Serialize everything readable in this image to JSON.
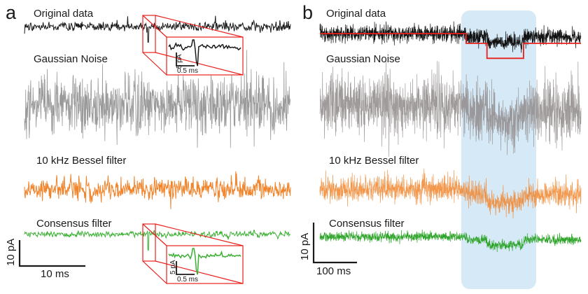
{
  "chart_data": {
    "type": "line",
    "title": "",
    "panels": [
      {
        "panel_label": "a",
        "traces": [
          {
            "name": "Original data",
            "color": "#1a1a1a",
            "noise_amplitude_pA": 2.5,
            "event": {
              "type": "spike",
              "depth_pA": 7
            }
          },
          {
            "name": "Gaussian Noise",
            "color": "#8f8f8f",
            "noise_amplitude_pA": 14
          },
          {
            "name": "10 kHz Bessel filter",
            "color": "#f0852d",
            "noise_amplitude_pA": 7
          },
          {
            "name": "Consensus filter",
            "color": "#3cb034",
            "noise_amplitude_pA": 2,
            "event": {
              "type": "spike",
              "depth_pA": 7
            }
          }
        ],
        "insets": [
          {
            "trace": "Original data",
            "scale_y": "5 pA",
            "scale_x": "0.5 ms",
            "color": "#1a1a1a"
          },
          {
            "trace": "Consensus filter",
            "scale_y": "5 pA",
            "scale_x": "0.5 ms",
            "color": "#3cb034"
          }
        ],
        "scale_bar": {
          "y": "10 pA",
          "x": "10 ms"
        }
      },
      {
        "panel_label": "b",
        "traces": [
          {
            "name": "Original data",
            "color": "#111111",
            "noise_amplitude_pA": 4
          },
          {
            "name": "Gaussian Noise",
            "color": "#8f8a8a",
            "noise_amplitude_pA": 14
          },
          {
            "name": "10 kHz Bessel filter",
            "color": "#f0852d",
            "noise_amplitude_pA": 7
          },
          {
            "name": "Consensus filter",
            "color": "#2ea52a",
            "noise_amplitude_pA": 2.5
          }
        ],
        "idealized_levels": {
          "color": "#e8201c",
          "levels_pA": [
            0,
            -1.5,
            -3.8,
            -1.5
          ],
          "segment_fractions": [
            0.56,
            0.08,
            0.14,
            0.22
          ]
        },
        "highlight": {
          "color": "#cfe5f5"
        },
        "scale_bar": {
          "y": "10 pA",
          "x": "100 ms"
        }
      }
    ]
  },
  "inset_color": "#e8201c"
}
